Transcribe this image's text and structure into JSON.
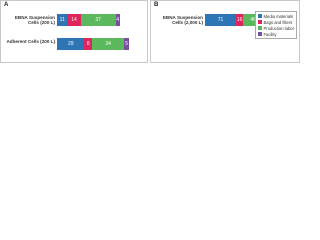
{
  "chart_data": [
    {
      "type": "bar",
      "title": "A",
      "categories": [
        "EBNA Suspension Cells (200 L)",
        "Adherent Cells (200 L)"
      ],
      "series": [
        {
          "color": "#2e75b6",
          "values": [
            11,
            29
          ]
        },
        {
          "color": "#e0245e",
          "values": [
            14,
            8
          ]
        },
        {
          "color": "#5cb85c",
          "values": [
            37,
            34
          ]
        },
        {
          "color": "#7b4fa0",
          "values": [
            4,
            5
          ]
        }
      ]
    },
    {
      "type": "bar",
      "title": "B",
      "categories": [
        "EBNA Suspension Cells (2,000 L)"
      ],
      "series": [
        {
          "name": "Media materials",
          "color": "#2e75b6",
          "values": [
            71
          ]
        },
        {
          "name": "Bags and filters",
          "color": "#e0245e",
          "values": [
            16
          ]
        },
        {
          "name": "Production labor",
          "color": "#5cb85c",
          "values": [
            46
          ]
        },
        {
          "name": "Facility",
          "color": "#7b4fa0",
          "values": [
            4
          ]
        }
      ],
      "legend": "right"
    }
  ]
}
